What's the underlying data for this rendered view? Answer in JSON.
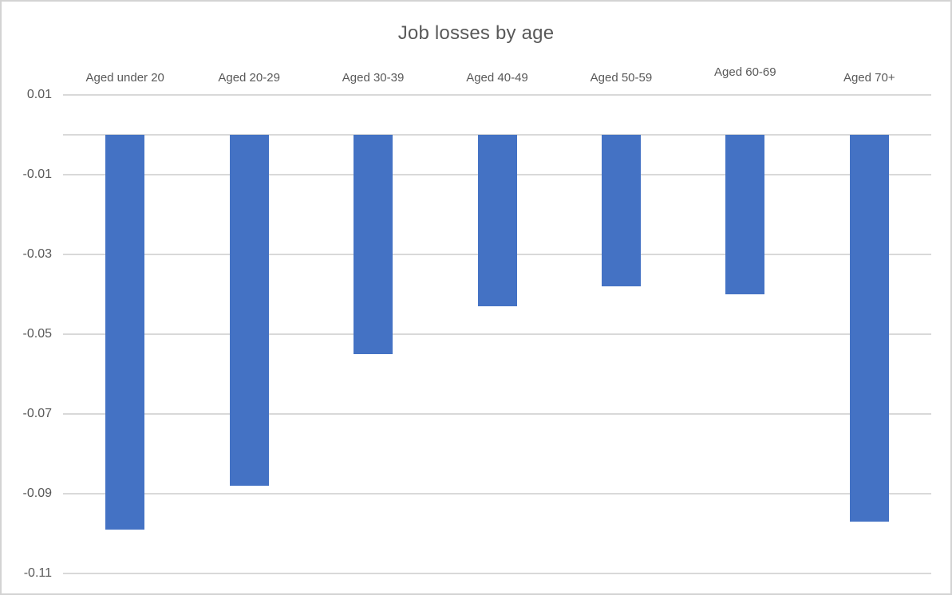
{
  "chart_data": {
    "type": "bar",
    "title": "Job losses by age",
    "categories": [
      "Aged under 20",
      "Aged 20-29",
      "Aged 30-39",
      "Aged 40-49",
      "Aged 50-59",
      "Aged 60-69",
      "Aged 70+"
    ],
    "values": [
      -0.099,
      -0.088,
      -0.055,
      -0.043,
      -0.038,
      -0.04,
      -0.097
    ],
    "xlabel": "",
    "ylabel": "",
    "y_ticks": [
      {
        "value": 0.01,
        "label": "0.01"
      },
      {
        "value": -0.01,
        "label": "-0.01"
      },
      {
        "value": -0.03,
        "label": "-0.03"
      },
      {
        "value": -0.05,
        "label": "-0.05"
      },
      {
        "value": -0.07,
        "label": "-0.07"
      },
      {
        "value": -0.09,
        "label": "-0.09"
      },
      {
        "value": -0.11,
        "label": "-0.11"
      }
    ],
    "ylim": [
      -0.115,
      0.015
    ],
    "zero_line": 0,
    "grid": true,
    "legend": "none",
    "category_label_position": "top",
    "colors": {
      "bar": "#4472C4",
      "gridline": "#D9D9D9",
      "text": "#595959",
      "background": "#ffffff",
      "canvas_border": "#d3d3d3"
    }
  }
}
